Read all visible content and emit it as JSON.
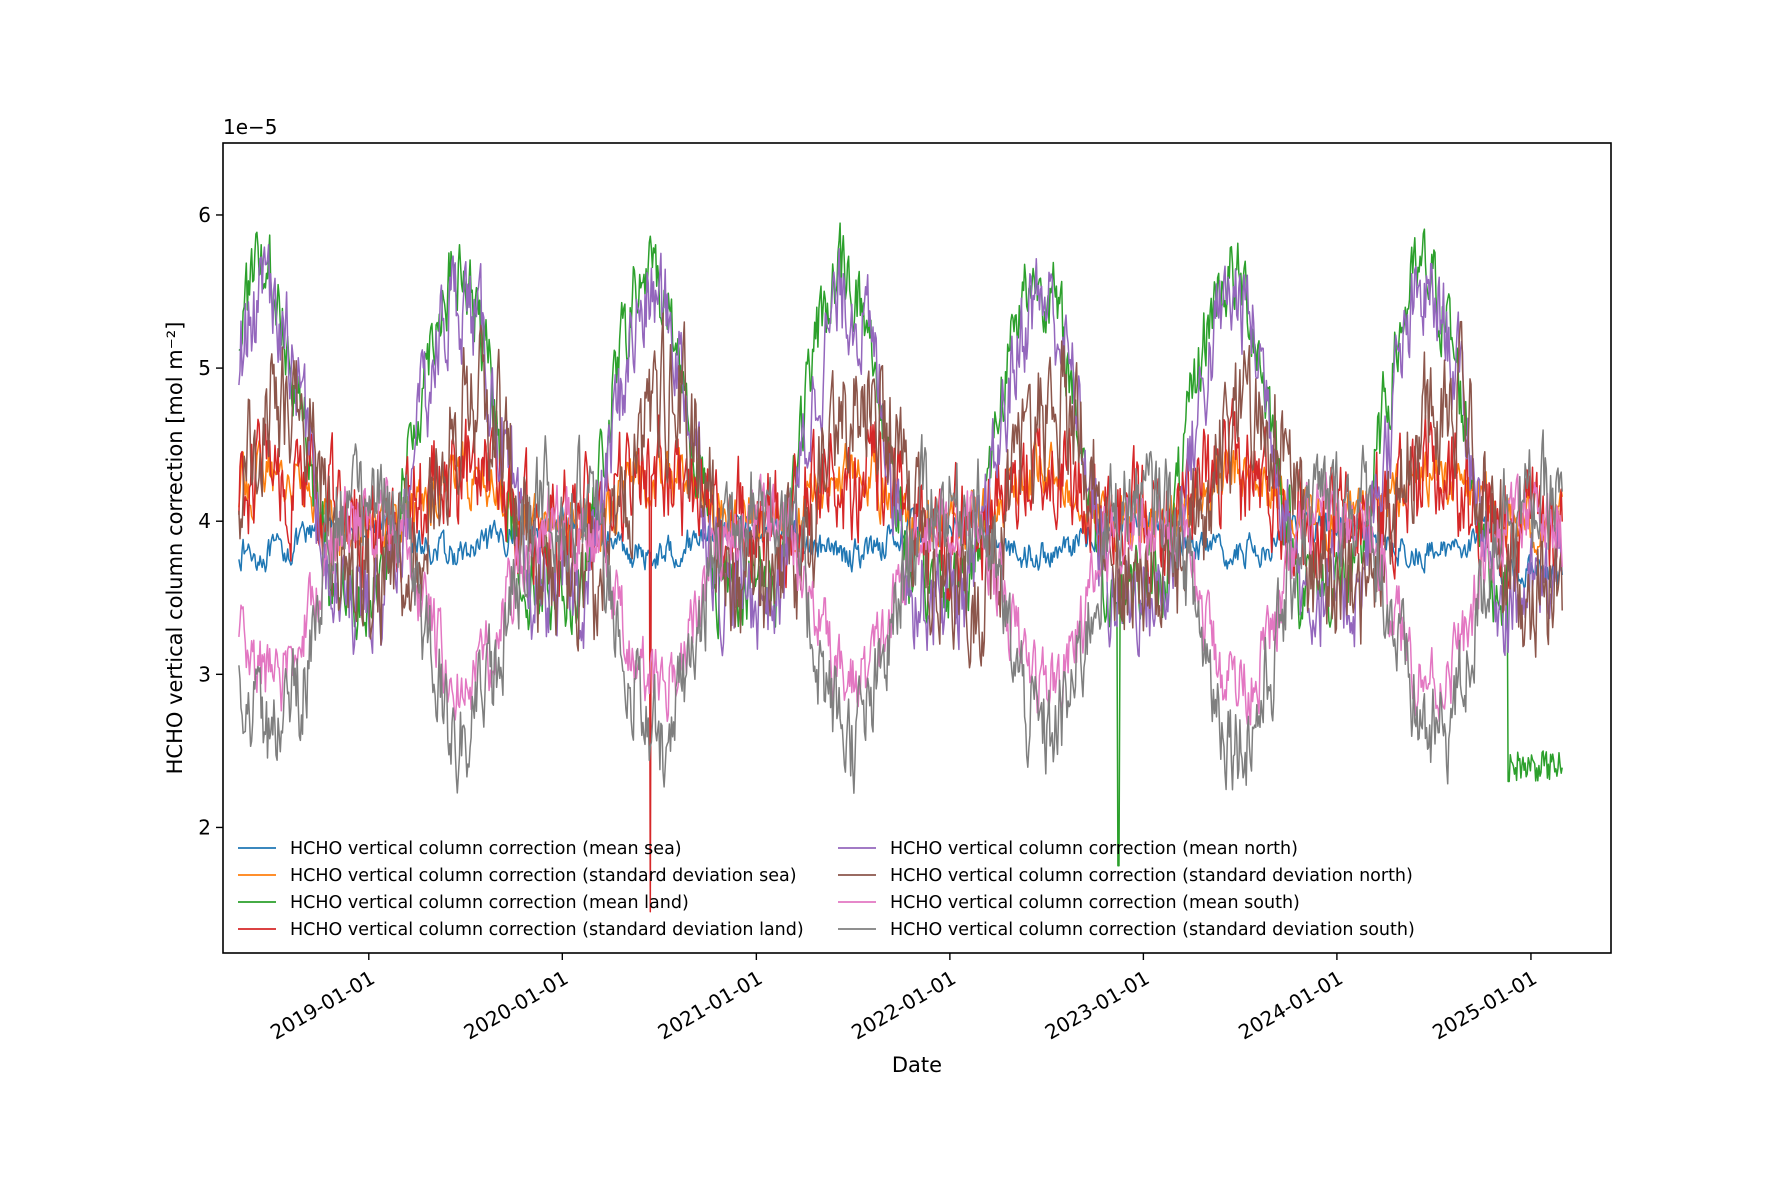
{
  "chart_data": {
    "type": "line",
    "title": "",
    "xlabel": "Date",
    "ylabel": "HCHO vertical column correction [mol m⁻²]",
    "offset_text": "1e−5",
    "x_start": "2018-05-01",
    "x_end": "2025-03-01",
    "xlim": [
      "2018-04-01",
      "2025-06-01"
    ],
    "ylim": [
      1.18,
      6.47
    ],
    "x_ticks": [
      "2019-01-01",
      "2020-01-01",
      "2021-01-01",
      "2022-01-01",
      "2023-01-01",
      "2024-01-01",
      "2025-01-01"
    ],
    "y_ticks": [
      2,
      3,
      4,
      5,
      6
    ],
    "y_tick_labels": [
      "2",
      "3",
      "4",
      "5",
      "6"
    ],
    "grid": false,
    "legend_position": "lower-left, 2 columns",
    "series": [
      {
        "name": "HCHO vertical column correction (mean sea)",
        "color": "#1f77b4",
        "base": 3.9,
        "amp": -0.12,
        "phase": 0.45,
        "noise": 0.08,
        "late_drop": 0.3
      },
      {
        "name": "HCHO vertical column correction (standard deviation sea)",
        "color": "#ff7f0e",
        "base": 4.1,
        "amp": 0.2,
        "phase": 0.5,
        "noise": 0.15
      },
      {
        "name": "HCHO vertical column correction (mean land)",
        "color": "#2ca02c",
        "base": 4.35,
        "amp": 1.25,
        "phase": 0.45,
        "noise": 0.22,
        "drop": [
          [
            "2022-11-15",
            1.75
          ],
          [
            "2024-11-20",
            2.3
          ]
        ]
      },
      {
        "name": "HCHO vertical column correction (standard deviation land)",
        "color": "#d62728",
        "base": 4.1,
        "amp": 0.2,
        "phase": 0.5,
        "noise": 0.3,
        "spike": [
          [
            "2020-06-15",
            1.45
          ]
        ]
      },
      {
        "name": "HCHO vertical column correction (mean north)",
        "color": "#9467bd",
        "base": 4.25,
        "amp": 1.2,
        "phase": 0.47,
        "noise": 0.28
      },
      {
        "name": "HCHO vertical column correction (standard deviation north)",
        "color": "#8c564b",
        "base": 4.05,
        "amp": 0.75,
        "phase": 0.55,
        "noise": 0.35
      },
      {
        "name": "HCHO vertical column correction (mean south)",
        "color": "#e377c2",
        "base": 3.6,
        "amp": -0.65,
        "phase": 0.5,
        "noise": 0.2
      },
      {
        "name": "HCHO vertical column correction (standard deviation south)",
        "color": "#7f7f7f",
        "base": 3.55,
        "amp": -0.95,
        "phase": 0.5,
        "noise": 0.28
      }
    ]
  }
}
